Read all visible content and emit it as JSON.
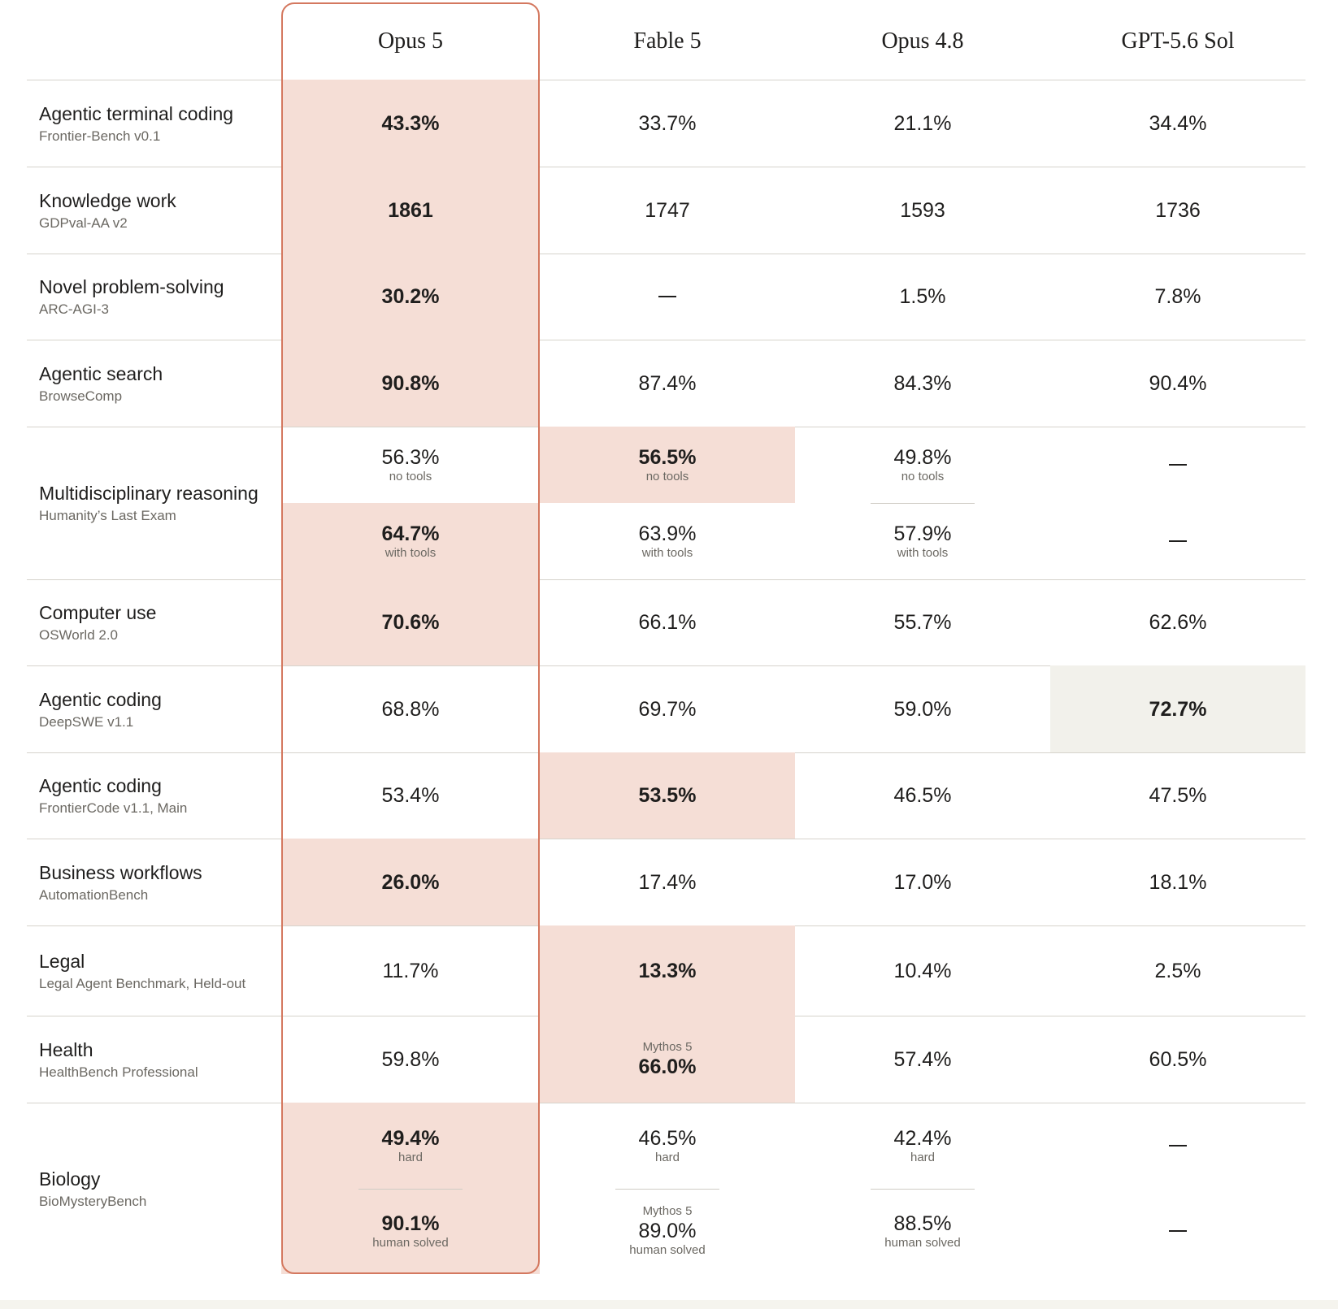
{
  "columns": [
    "Opus 5",
    "Fable 5",
    "Opus 4.8",
    "GPT-5.6 Sol"
  ],
  "colors": {
    "highlight": "#f5ded6",
    "highlight_secondary": "#f2f1eb",
    "frame": "#d4785f"
  },
  "rows": [
    {
      "title": "Agentic terminal coding",
      "subtitle": "Frontier-Bench v0.1",
      "cells": [
        {
          "value": "43.3%",
          "bold": true,
          "highlight": true
        },
        {
          "value": "33.7%"
        },
        {
          "value": "21.1%"
        },
        {
          "value": "34.4%"
        }
      ]
    },
    {
      "title": "Knowledge work",
      "subtitle": "GDPval-AA v2",
      "cells": [
        {
          "value": "1861",
          "bold": true,
          "highlight": true
        },
        {
          "value": "1747"
        },
        {
          "value": "1593"
        },
        {
          "value": "1736"
        }
      ]
    },
    {
      "title": "Novel problem-solving",
      "subtitle": "ARC-AGI-3",
      "cells": [
        {
          "value": "30.2%",
          "bold": true,
          "highlight": true
        },
        {
          "value": "—"
        },
        {
          "value": "1.5%"
        },
        {
          "value": "7.8%"
        }
      ]
    },
    {
      "title": "Agentic search",
      "subtitle": "BrowseComp",
      "cells": [
        {
          "value": "90.8%",
          "bold": true,
          "highlight": true
        },
        {
          "value": "87.4%"
        },
        {
          "value": "84.3%"
        },
        {
          "value": "90.4%"
        }
      ]
    },
    {
      "title": "Multidisciplinary reasoning",
      "subtitle": "Humanity’s Last Exam",
      "subrows": [
        [
          {
            "value": "56.3%",
            "note": "no tools"
          },
          {
            "value": "56.5%",
            "note": "no tools",
            "bold": true,
            "highlight": true
          },
          {
            "value": "49.8%",
            "note": "no tools"
          },
          {
            "value": "—"
          }
        ],
        [
          {
            "value": "64.7%",
            "note": "with tools",
            "bold": true,
            "highlight": true
          },
          {
            "value": "63.9%",
            "note": "with tools"
          },
          {
            "value": "57.9%",
            "note": "with tools"
          },
          {
            "value": "—"
          }
        ]
      ]
    },
    {
      "title": "Computer use",
      "subtitle": "OSWorld 2.0",
      "cells": [
        {
          "value": "70.6%",
          "bold": true,
          "highlight": true
        },
        {
          "value": "66.1%"
        },
        {
          "value": "55.7%"
        },
        {
          "value": "62.6%"
        }
      ]
    },
    {
      "title": "Agentic coding",
      "subtitle": "DeepSWE v1.1",
      "cells": [
        {
          "value": "68.8%"
        },
        {
          "value": "69.7%"
        },
        {
          "value": "59.0%"
        },
        {
          "value": "72.7%",
          "bold": true,
          "highlight2": true
        }
      ]
    },
    {
      "title": "Agentic coding",
      "subtitle": "FrontierCode v1.1, Main",
      "cells": [
        {
          "value": "53.4%"
        },
        {
          "value": "53.5%",
          "bold": true,
          "highlight": true
        },
        {
          "value": "46.5%"
        },
        {
          "value": "47.5%"
        }
      ]
    },
    {
      "title": "Business workflows",
      "subtitle": "AutomationBench",
      "cells": [
        {
          "value": "26.0%",
          "bold": true,
          "highlight": true
        },
        {
          "value": "17.4%"
        },
        {
          "value": "17.0%"
        },
        {
          "value": "18.1%"
        }
      ]
    },
    {
      "title": "Legal",
      "subtitle": "Legal Agent Benchmark, Held-out",
      "cells": [
        {
          "value": "11.7%"
        },
        {
          "value": "13.3%",
          "bold": true,
          "highlight": true
        },
        {
          "value": "10.4%"
        },
        {
          "value": "2.5%"
        }
      ]
    },
    {
      "title": "Health",
      "subtitle": "HealthBench Professional",
      "cells": [
        {
          "value": "59.8%"
        },
        {
          "value": "66.0%",
          "pre": "Mythos 5",
          "bold": true,
          "highlight": true
        },
        {
          "value": "57.4%"
        },
        {
          "value": "60.5%"
        }
      ]
    },
    {
      "title": "Biology",
      "subtitle": "BioMysteryBench",
      "subrows": [
        [
          {
            "value": "49.4%",
            "note": "hard",
            "bold": true,
            "highlight": true
          },
          {
            "value": "46.5%",
            "note": "hard"
          },
          {
            "value": "42.4%",
            "note": "hard"
          },
          {
            "value": "—"
          }
        ],
        [
          {
            "value": "90.1%",
            "note": "human solved",
            "bold": true,
            "highlight": true
          },
          {
            "value": "89.0%",
            "note": "human solved",
            "pre": "Mythos 5"
          },
          {
            "value": "88.5%",
            "note": "human solved"
          },
          {
            "value": "—"
          }
        ]
      ]
    }
  ]
}
